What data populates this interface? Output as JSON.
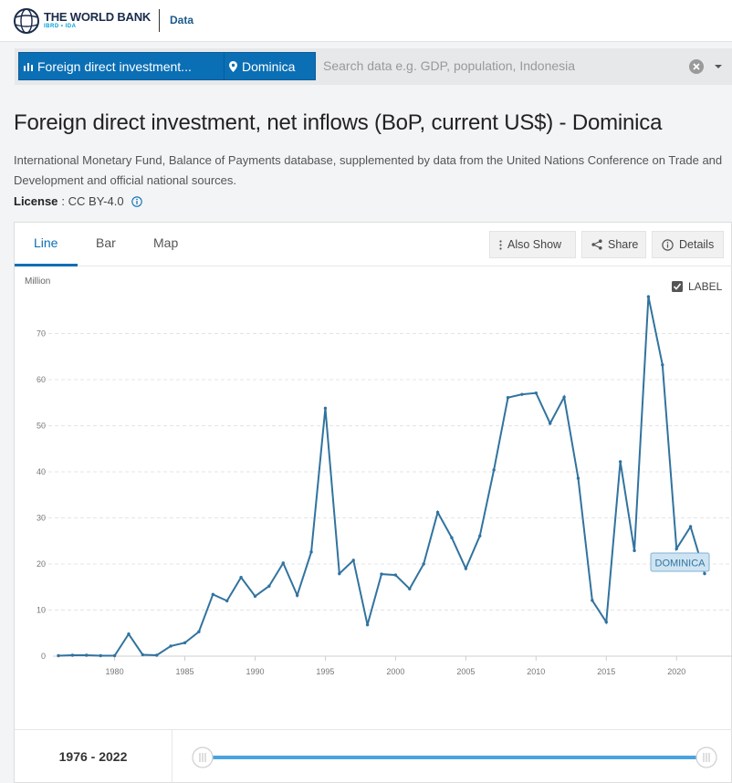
{
  "header": {
    "brand": "THE WORLD BANK",
    "brand_sub": "IBRD • IDA",
    "section": "Data"
  },
  "search": {
    "indicator_chip": "Foreign direct investment...",
    "country_chip": "Dominica",
    "placeholder": "Search data e.g. GDP, population, Indonesia"
  },
  "page": {
    "title": "Foreign direct investment, net inflows (BoP, current US$) - Dominica",
    "source": "International Monetary Fund, Balance of Payments database, supplemented by data from the United Nations Conference on Trade and Development and official national sources.",
    "license_label": "License",
    "license_value": ": CC BY-4.0"
  },
  "tabs": [
    {
      "label": "Line"
    },
    {
      "label": "Bar"
    },
    {
      "label": "Map"
    }
  ],
  "toolbar": {
    "also_show": "Also Show",
    "share": "Share",
    "details": "Details"
  },
  "label_toggle": "LABEL",
  "range": {
    "label": "1976 - 2022"
  },
  "colors": {
    "accent": "#0a6fb5",
    "series": "#31739f",
    "tag_bg": "#cfe4f2",
    "tag_border": "#7fb2d6"
  },
  "chart_data": {
    "type": "line",
    "ylabel": "Million",
    "ylim": [
      0,
      80
    ],
    "yticks": [
      0,
      10,
      20,
      30,
      40,
      50,
      60,
      70
    ],
    "xticks": [
      1980,
      1985,
      1990,
      1995,
      2000,
      2005,
      2010,
      2015,
      2020
    ],
    "xlim": [
      1976,
      2022
    ],
    "series": [
      {
        "name": "DOMINICA",
        "x": [
          1976,
          1977,
          1978,
          1979,
          1980,
          1981,
          1982,
          1983,
          1984,
          1985,
          1986,
          1987,
          1988,
          1989,
          1990,
          1991,
          1992,
          1993,
          1994,
          1995,
          1996,
          1997,
          1998,
          1999,
          2000,
          2001,
          2002,
          2003,
          2004,
          2005,
          2006,
          2007,
          2008,
          2009,
          2010,
          2011,
          2012,
          2013,
          2014,
          2015,
          2016,
          2017,
          2018,
          2019,
          2020,
          2021,
          2022
        ],
        "values": [
          0.1,
          0.2,
          0.2,
          0.1,
          0.1,
          4.8,
          0.3,
          0.2,
          2.2,
          2.9,
          5.3,
          13.4,
          12.0,
          17.1,
          13.0,
          15.2,
          20.2,
          13.2,
          22.6,
          53.8,
          17.9,
          20.8,
          6.8,
          17.8,
          17.6,
          14.6,
          20.0,
          31.2,
          25.7,
          19.0,
          26.1,
          40.4,
          56.1,
          56.8,
          57.1,
          50.5,
          56.2,
          38.6,
          12.1,
          7.4,
          42.2,
          22.9,
          78.0,
          63.2,
          23.3,
          28.1,
          17.9
        ]
      }
    ]
  }
}
